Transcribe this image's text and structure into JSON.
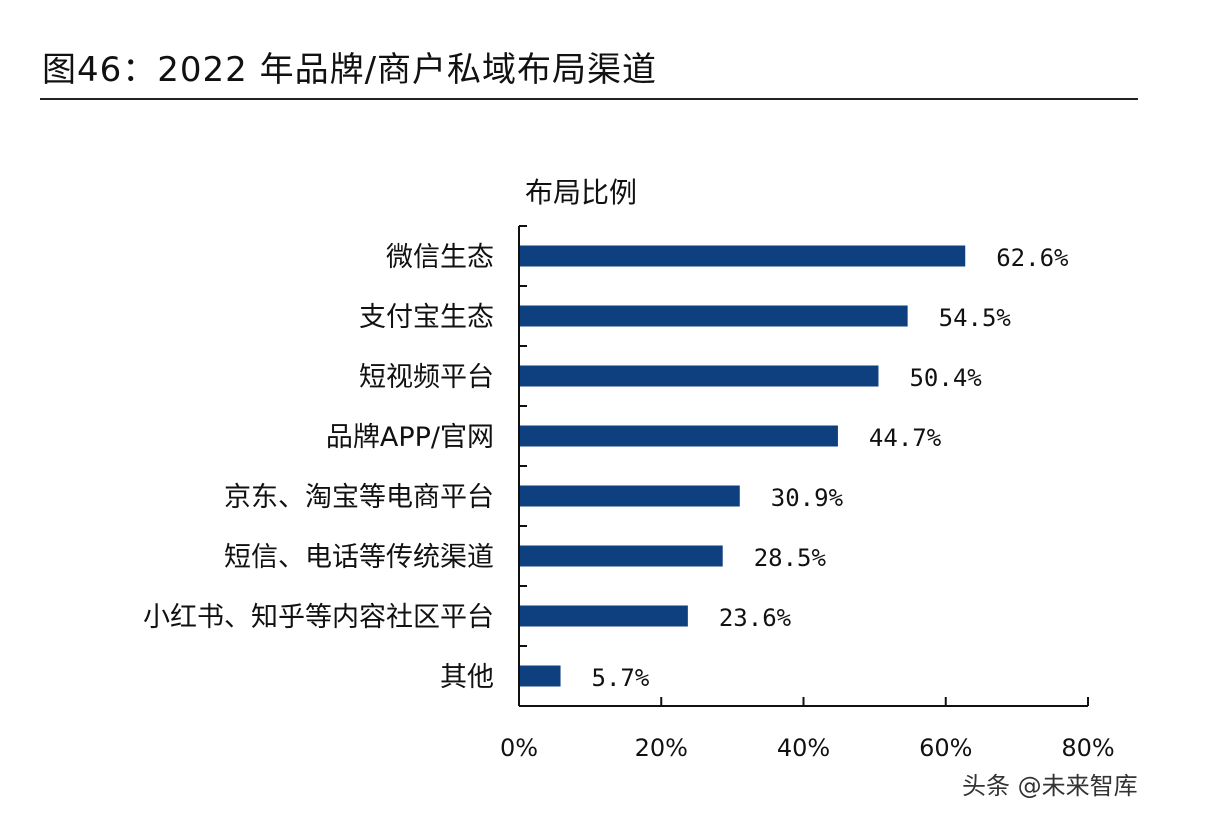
{
  "title": "图46：2022 年品牌/商户私域布局渠道",
  "watermark": "头条 @未来智库",
  "chart_data": {
    "type": "bar",
    "orientation": "horizontal",
    "title": "图46：2022 年品牌/商户私域布局渠道",
    "series_label": "布局比例",
    "categories": [
      "微信生态",
      "支付宝生态",
      "短视频平台",
      "品牌APP/官网",
      "京东、淘宝等电商平台",
      "短信、电话等传统渠道",
      "小红书、知乎等内容社区平台",
      "其他"
    ],
    "values": [
      62.6,
      54.5,
      50.4,
      44.7,
      30.9,
      28.5,
      23.6,
      5.7
    ],
    "data_labels": [
      "62.6%",
      "54.5%",
      "50.4%",
      "44.7%",
      "30.9%",
      "28.5%",
      "23.6%",
      "5.7%"
    ],
    "xlim": [
      0,
      80
    ],
    "xticks": [
      "0%",
      "20%",
      "40%",
      "60%",
      "80%"
    ],
    "bar_color": "#0e3f7e",
    "grid": false
  }
}
